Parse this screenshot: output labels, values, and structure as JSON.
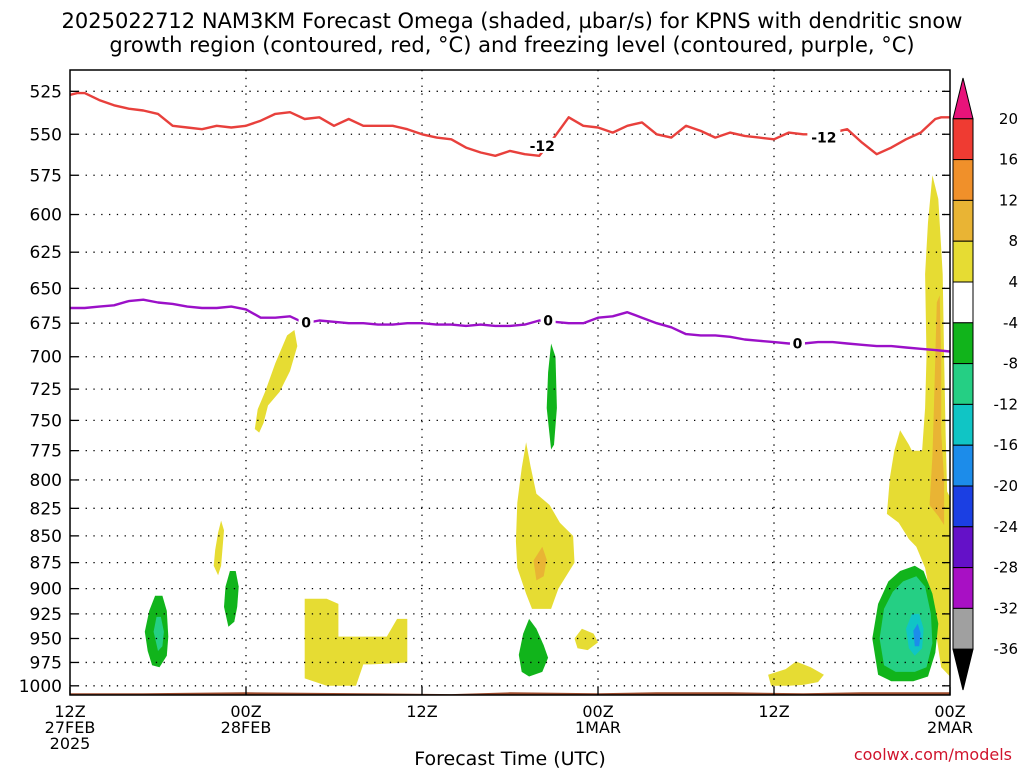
{
  "title_line1": "2025022712 NAM3KM Forecast Omega (shaded, µbar/s) for KPNS with dendritic snow",
  "title_line2": "growth region (contoured, red, °C) and freezing level (contoured, purple, °C)",
  "xlabel": "Forecast Time (UTC)",
  "credit": "coolwx.com/models",
  "chart_data": {
    "type": "heatmap",
    "x_unit": "hours since 2025-02-27 12Z (forecast hour)",
    "xlim": [
      0,
      60
    ],
    "y_unit": "hPa",
    "ylim": [
      1010,
      513
    ],
    "yscale": "log-pressure",
    "grid": true,
    "yticks": [
      525,
      550,
      575,
      600,
      625,
      650,
      675,
      700,
      725,
      750,
      775,
      800,
      825,
      850,
      875,
      900,
      925,
      950,
      975,
      1000
    ],
    "xticks": [
      {
        "x": 0,
        "l1": "12Z",
        "l2": "27FEB",
        "l3": "2025"
      },
      {
        "x": 12,
        "l1": "00Z",
        "l2": "28FEB",
        "l3": ""
      },
      {
        "x": 24,
        "l1": "12Z",
        "l2": "",
        "l3": ""
      },
      {
        "x": 36,
        "l1": "00Z",
        "l2": "1MAR",
        "l3": ""
      },
      {
        "x": 48,
        "l1": "12Z",
        "l2": "",
        "l3": ""
      },
      {
        "x": 60,
        "l1": "00Z",
        "l2": "2MAR",
        "l3": ""
      }
    ],
    "colorbar": {
      "label_unit": "µbar/s",
      "ticks": [
        "20",
        "16",
        "12",
        "8",
        "4",
        "-4",
        "-8",
        "-12",
        "-16",
        "-20",
        "-24",
        "-28",
        "-32",
        "-36"
      ],
      "bins": [
        {
          "color": "#e8137a"
        },
        {
          "color": "#ef3b32"
        },
        {
          "color": "#f0902a"
        },
        {
          "color": "#e9b434"
        },
        {
          "color": "#e6dc33"
        },
        {
          "color": "#ffffff"
        },
        {
          "color": "#11b41b"
        },
        {
          "color": "#25cf84"
        },
        {
          "color": "#10c5c5"
        },
        {
          "color": "#1c8cea"
        },
        {
          "color": "#1b3fe3"
        },
        {
          "color": "#6411c8"
        },
        {
          "color": "#a810c4"
        },
        {
          "color": "#a0a0a0"
        },
        {
          "color": "#000000"
        }
      ]
    },
    "surface": {
      "color": "#9c4a2a",
      "x": [
        0,
        5,
        12,
        20,
        26,
        30,
        36,
        40,
        45,
        50,
        54,
        60
      ],
      "p": [
        1008,
        1008,
        1007,
        1008,
        1009,
        1007,
        1008,
        1007,
        1007,
        1008,
        1007,
        1007
      ]
    },
    "series": [
      {
        "name": "-12",
        "color": "#e8403c",
        "label": "-12",
        "label_positions": [
          [
            32.2,
            557.0
          ],
          [
            51.4,
            552.0
          ]
        ],
        "x": [
          0,
          0.5,
          1,
          1.5,
          2,
          3,
          4,
          5,
          6,
          7,
          8,
          9,
          10,
          11,
          12,
          13,
          14,
          15,
          16,
          17,
          18,
          19,
          20,
          21,
          22,
          23,
          24,
          25,
          26,
          27,
          28,
          29,
          30,
          31,
          32,
          33,
          34,
          35,
          36,
          37,
          38,
          39,
          40,
          41,
          42,
          43,
          44,
          45,
          46,
          47,
          48,
          49,
          50,
          51,
          52,
          53,
          54,
          55,
          56,
          57,
          58,
          59,
          59.4,
          60
        ],
        "y": [
          527,
          526,
          526,
          528,
          530,
          533,
          535,
          536,
          538,
          545,
          546,
          547,
          545,
          546,
          545,
          542,
          538,
          537,
          541,
          540,
          545,
          541,
          545,
          545,
          545,
          547,
          550,
          552,
          553,
          558,
          561,
          563,
          560,
          562,
          563,
          552,
          540,
          545,
          546,
          549,
          545,
          543,
          550,
          552,
          545,
          548,
          552,
          549,
          551,
          552,
          553,
          549,
          550,
          550,
          549,
          547,
          555,
          562,
          558,
          553,
          549,
          541,
          540,
          540
        ]
      },
      {
        "name": "0",
        "color": "#9b10c8",
        "label": "0",
        "label_positions": [
          [
            16.1,
            674.5
          ],
          [
            32.6,
            673.0
          ],
          [
            49.6,
            690.0
          ]
        ],
        "x": [
          0,
          1,
          2,
          3,
          4,
          5,
          6,
          7,
          8,
          9,
          10,
          11,
          12,
          13,
          14,
          15,
          16,
          17,
          18,
          19,
          20,
          21,
          22,
          23,
          24,
          25,
          26,
          27,
          28,
          29,
          30,
          31,
          32,
          33,
          34,
          35,
          36,
          37,
          38,
          39,
          40,
          41,
          42,
          43,
          44,
          45,
          46,
          47,
          48,
          49,
          50,
          51,
          52,
          53,
          54,
          55,
          56,
          57,
          58,
          59,
          60
        ],
        "y": [
          664,
          664,
          663,
          662,
          659,
          658,
          660,
          661,
          663,
          664,
          664,
          663,
          665,
          671,
          671,
          670,
          675,
          673,
          674,
          675,
          675,
          676,
          676,
          675,
          675,
          676,
          676,
          677,
          676,
          677,
          677,
          676,
          673,
          674,
          675,
          675,
          671,
          670,
          667,
          671,
          675,
          678,
          683,
          684,
          684,
          685,
          687,
          688,
          689,
          690,
          690,
          689,
          689,
          690,
          691,
          692,
          692,
          693,
          694,
          695,
          696
        ]
      }
    ],
    "omega_regions": [
      {
        "level": "4",
        "color": "#e6dc33",
        "points": [
          [
            12.6,
            757
          ],
          [
            12.8,
            741
          ],
          [
            13.3,
            727
          ],
          [
            14.0,
            705
          ],
          [
            14.8,
            684
          ],
          [
            15.3,
            680
          ],
          [
            15.5,
            692
          ],
          [
            15.0,
            711
          ],
          [
            14.3,
            727
          ],
          [
            13.5,
            738
          ],
          [
            13.2,
            752
          ],
          [
            12.9,
            760
          ]
        ]
      },
      {
        "level": "4",
        "color": "#e6dc33",
        "points": [
          [
            9.8,
            878
          ],
          [
            9.9,
            863
          ],
          [
            10.1,
            847
          ],
          [
            10.3,
            836
          ],
          [
            10.5,
            845
          ],
          [
            10.4,
            862
          ],
          [
            10.3,
            878
          ],
          [
            10.1,
            887
          ]
        ]
      },
      {
        "level": "-4",
        "color": "#11b41b",
        "points": [
          [
            10.5,
            918
          ],
          [
            10.6,
            898
          ],
          [
            10.9,
            883
          ],
          [
            11.3,
            883
          ],
          [
            11.5,
            898
          ],
          [
            11.4,
            918
          ],
          [
            11.2,
            933
          ],
          [
            10.8,
            938
          ]
        ]
      },
      {
        "level": "-4",
        "color": "#11b41b",
        "points": [
          [
            5.1,
            943
          ],
          [
            5.4,
            922
          ],
          [
            5.8,
            907
          ],
          [
            6.3,
            907
          ],
          [
            6.6,
            922
          ],
          [
            6.7,
            948
          ],
          [
            6.6,
            968
          ],
          [
            6.1,
            980
          ],
          [
            5.6,
            978
          ],
          [
            5.3,
            963
          ]
        ]
      },
      {
        "level": "-8",
        "color": "#25cf84",
        "points": [
          [
            5.7,
            943
          ],
          [
            5.9,
            928
          ],
          [
            6.2,
            928
          ],
          [
            6.4,
            943
          ],
          [
            6.3,
            958
          ],
          [
            6.0,
            963
          ]
        ]
      },
      {
        "level": "4",
        "color": "#e6dc33",
        "points": [
          [
            16.0,
            992
          ],
          [
            16.0,
            910
          ],
          [
            17.5,
            910
          ],
          [
            18.3,
            915
          ],
          [
            18.3,
            948
          ],
          [
            20.0,
            948
          ],
          [
            21.6,
            948
          ],
          [
            22.3,
            930
          ],
          [
            23.0,
            930
          ],
          [
            23.0,
            975
          ],
          [
            20.5,
            977
          ],
          [
            20.0,
            977
          ],
          [
            19.5,
            1000
          ],
          [
            17.5,
            1000
          ]
        ]
      },
      {
        "level": "4",
        "color": "#e6dc33",
        "points": [
          [
            30.4,
            855
          ],
          [
            30.5,
            820
          ],
          [
            30.8,
            790
          ],
          [
            31.1,
            768
          ],
          [
            31.4,
            788
          ],
          [
            31.8,
            812
          ],
          [
            32.7,
            822
          ],
          [
            33.4,
            838
          ],
          [
            34.3,
            850
          ],
          [
            34.4,
            875
          ],
          [
            33.3,
            900
          ],
          [
            32.8,
            920
          ],
          [
            31.5,
            920
          ],
          [
            31.1,
            905
          ],
          [
            30.5,
            880
          ]
        ]
      },
      {
        "level": "8",
        "color": "#e9b434",
        "points": [
          [
            31.6,
            873
          ],
          [
            32.2,
            860
          ],
          [
            32.5,
            872
          ],
          [
            32.3,
            888
          ],
          [
            31.8,
            892
          ]
        ]
      },
      {
        "level": "-4",
        "color": "#11b41b",
        "points": [
          [
            32.5,
            740
          ],
          [
            32.6,
            712
          ],
          [
            32.8,
            690
          ],
          [
            33.1,
            700
          ],
          [
            33.2,
            740
          ],
          [
            33.0,
            770
          ],
          [
            32.8,
            774
          ]
        ]
      },
      {
        "level": "-4",
        "color": "#11b41b",
        "points": [
          [
            30.6,
            967
          ],
          [
            30.9,
            945
          ],
          [
            31.3,
            930
          ],
          [
            31.8,
            940
          ],
          [
            32.3,
            957
          ],
          [
            32.6,
            970
          ],
          [
            32.2,
            985
          ],
          [
            31.3,
            990
          ],
          [
            30.8,
            985
          ]
        ]
      },
      {
        "level": "4",
        "color": "#e6dc33",
        "points": [
          [
            34.4,
            950
          ],
          [
            34.9,
            940
          ],
          [
            35.7,
            945
          ],
          [
            36.0,
            954
          ],
          [
            35.3,
            962
          ],
          [
            34.6,
            960
          ]
        ]
      },
      {
        "level": "4",
        "color": "#e6dc33",
        "points": [
          [
            47.6,
            988
          ],
          [
            48.8,
            982
          ],
          [
            49.5,
            974
          ],
          [
            50.5,
            980
          ],
          [
            51.4,
            988
          ],
          [
            51.0,
            996
          ],
          [
            50.0,
            999
          ],
          [
            49.0,
            1000
          ],
          [
            47.8,
            1000
          ]
        ]
      },
      {
        "level": "4",
        "color": "#e6dc33",
        "points": [
          [
            55.7,
            830
          ],
          [
            55.9,
            798
          ],
          [
            56.2,
            775
          ],
          [
            56.6,
            758
          ],
          [
            57.2,
            770
          ],
          [
            57.4,
            775
          ],
          [
            58.1,
            775
          ],
          [
            58.3,
            740
          ],
          [
            58.4,
            700
          ],
          [
            58.3,
            640
          ],
          [
            58.5,
            605
          ],
          [
            58.8,
            575
          ],
          [
            59.2,
            590
          ],
          [
            59.5,
            640
          ],
          [
            59.6,
            700
          ],
          [
            59.7,
            760
          ],
          [
            59.8,
            810
          ],
          [
            60.0,
            815
          ],
          [
            60.0,
            990
          ],
          [
            59.4,
            980
          ],
          [
            59.1,
            950
          ],
          [
            58.7,
            910
          ],
          [
            58.3,
            880
          ],
          [
            57.7,
            860
          ],
          [
            57.2,
            853
          ],
          [
            56.5,
            838
          ]
        ]
      },
      {
        "level": "8",
        "color": "#e9b434",
        "points": [
          [
            58.6,
            822
          ],
          [
            58.8,
            780
          ],
          [
            58.9,
            740
          ],
          [
            59.0,
            700
          ],
          [
            59.1,
            660
          ],
          [
            59.3,
            655
          ],
          [
            59.4,
            700
          ],
          [
            59.4,
            760
          ],
          [
            59.6,
            800
          ],
          [
            59.6,
            840
          ],
          [
            59.2,
            832
          ]
        ]
      },
      {
        "level": "-4",
        "color": "#11b41b",
        "points": [
          [
            54.7,
            950
          ],
          [
            55.1,
            915
          ],
          [
            55.8,
            893
          ],
          [
            56.6,
            883
          ],
          [
            57.6,
            878
          ],
          [
            58.2,
            883
          ],
          [
            58.8,
            905
          ],
          [
            59.2,
            935
          ],
          [
            59.0,
            965
          ],
          [
            58.5,
            990
          ],
          [
            57.5,
            995
          ],
          [
            56.0,
            995
          ],
          [
            55.1,
            988
          ]
        ]
      },
      {
        "level": "-8",
        "color": "#25cf84",
        "points": [
          [
            55.2,
            950
          ],
          [
            55.5,
            920
          ],
          [
            56.1,
            903
          ],
          [
            56.8,
            893
          ],
          [
            57.7,
            888
          ],
          [
            58.3,
            898
          ],
          [
            58.7,
            925
          ],
          [
            58.8,
            955
          ],
          [
            58.4,
            980
          ],
          [
            57.6,
            985
          ],
          [
            56.3,
            985
          ],
          [
            55.5,
            978
          ]
        ]
      },
      {
        "level": "-12",
        "color": "#10c5c5",
        "points": [
          [
            57.0,
            940
          ],
          [
            57.4,
            925
          ],
          [
            57.9,
            925
          ],
          [
            58.2,
            940
          ],
          [
            58.1,
            960
          ],
          [
            57.6,
            968
          ],
          [
            57.2,
            960
          ]
        ]
      },
      {
        "level": "-16",
        "color": "#1c8cea",
        "points": [
          [
            57.5,
            942
          ],
          [
            57.8,
            935
          ],
          [
            58.0,
            945
          ],
          [
            57.9,
            958
          ],
          [
            57.6,
            958
          ]
        ]
      }
    ]
  }
}
